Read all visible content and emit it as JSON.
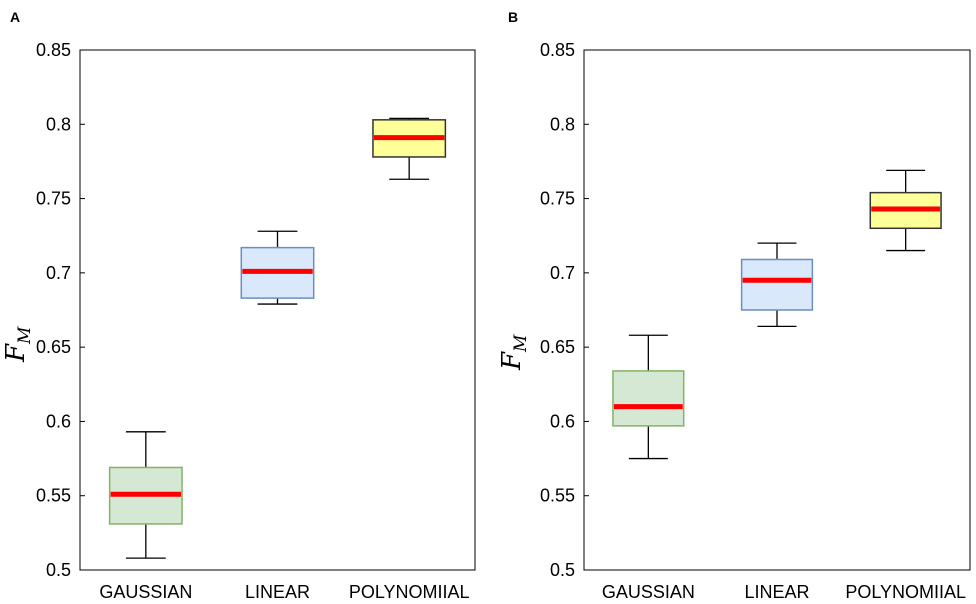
{
  "figure": {
    "type": "box"
  },
  "colors": {
    "GAUSSIAN": {
      "fill": "#d5e8d4",
      "stroke": "#82b366"
    },
    "LINEAR": {
      "fill": "#dae8fc",
      "stroke": "#6c8ebf"
    },
    "POLYNOMIIAL": {
      "fill": "#ffff99",
      "stroke": "#333333"
    },
    "median": "#ff0000"
  },
  "chart_data": [
    {
      "type": "box",
      "panel": "A",
      "ylabel_main": "F",
      "ylabel_sub": "M",
      "ylim": [
        0.5,
        0.85
      ],
      "yticks": [
        "0.5",
        "0.55",
        "0.6",
        "0.65",
        "0.7",
        "0.75",
        "0.8",
        "0.85"
      ],
      "categories": [
        "GAUSSIAN",
        "LINEAR",
        "POLYNOMIIAL"
      ],
      "boxes": [
        {
          "name": "GAUSSIAN",
          "whislo": 0.508,
          "q1": 0.531,
          "med": 0.551,
          "q3": 0.569,
          "whishi": 0.593
        },
        {
          "name": "LINEAR",
          "whislo": 0.679,
          "q1": 0.683,
          "med": 0.701,
          "q3": 0.717,
          "whishi": 0.728
        },
        {
          "name": "POLYNOMIIAL",
          "whislo": 0.763,
          "q1": 0.778,
          "med": 0.791,
          "q3": 0.803,
          "whishi": 0.804
        }
      ]
    },
    {
      "type": "box",
      "panel": "B",
      "ylabel_main": "F",
      "ylabel_sub": "M",
      "ylim": [
        0.5,
        0.85
      ],
      "yticks": [
        "0.5",
        "0.55",
        "0.6",
        "0.65",
        "0.7",
        "0.75",
        "0.8",
        "0.85"
      ],
      "categories": [
        "GAUSSIAN",
        "LINEAR",
        "POLYNOMIIAL"
      ],
      "boxes": [
        {
          "name": "GAUSSIAN",
          "whislo": 0.575,
          "q1": 0.597,
          "med": 0.61,
          "q3": 0.634,
          "whishi": 0.658
        },
        {
          "name": "LINEAR",
          "whislo": 0.664,
          "q1": 0.675,
          "med": 0.695,
          "q3": 0.709,
          "whishi": 0.72
        },
        {
          "name": "POLYNOMIIAL",
          "whislo": 0.715,
          "q1": 0.73,
          "med": 0.743,
          "q3": 0.754,
          "whishi": 0.769
        }
      ]
    }
  ]
}
